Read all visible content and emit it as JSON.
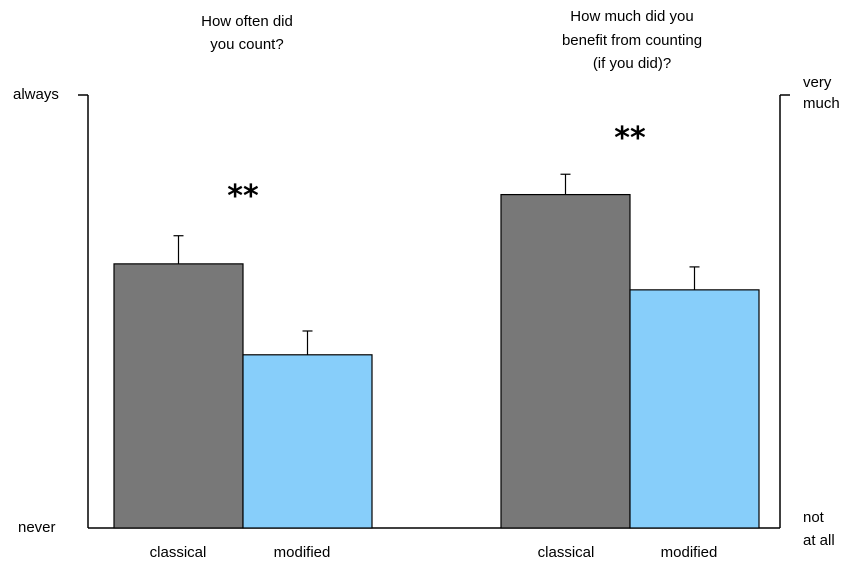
{
  "chart_data": [
    {
      "type": "bar",
      "title_lines": [
        "How often did",
        "you count?"
      ],
      "categories": [
        "classical",
        "modified"
      ],
      "values": [
        0.61,
        0.4
      ],
      "errors": [
        0.065,
        0.055
      ],
      "colors": [
        "#787878",
        "#87cefa"
      ],
      "ylim": [
        0,
        1
      ],
      "y_tick_labels": {
        "top": "always",
        "bottom": "never"
      },
      "significance": "**",
      "axis_side": "left"
    },
    {
      "type": "bar",
      "title_lines": [
        "How much did you",
        "benefit from counting",
        "(if you did)?"
      ],
      "categories": [
        "classical",
        "modified"
      ],
      "values": [
        0.77,
        0.55
      ],
      "errors": [
        0.047,
        0.053
      ],
      "colors": [
        "#787878",
        "#87cefa"
      ],
      "ylim": [
        0,
        1
      ],
      "y_tick_labels": {
        "top_lines": [
          "very",
          "much"
        ],
        "bottom_lines": [
          "not",
          "at all"
        ]
      },
      "significance": "**",
      "axis_side": "right"
    }
  ]
}
